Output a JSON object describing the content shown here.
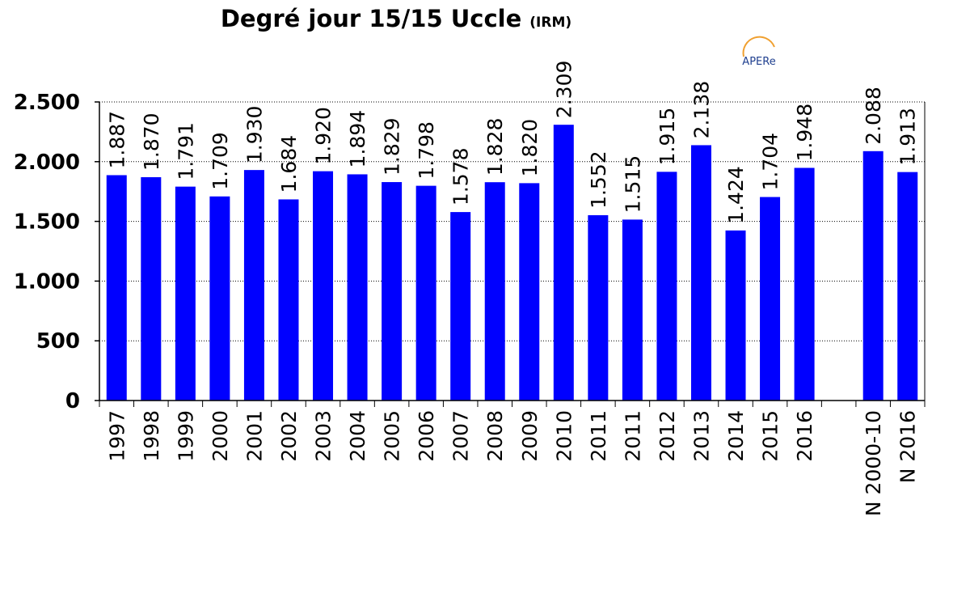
{
  "title": {
    "main": "Degré jour 15/15  Uccle",
    "source": "(IRM)"
  },
  "logo": {
    "text": "APERe"
  },
  "colors": {
    "bar": "#0000ff",
    "grid": "#000000",
    "axis": "#000000",
    "logo_arc": "#f0a030",
    "logo_text": "#1f3f8f"
  },
  "chart_data": {
    "type": "bar",
    "title": "Degré jour 15/15  Uccle (IRM)",
    "xlabel": "",
    "ylabel": "",
    "ylim": [
      0,
      2500
    ],
    "yticks": [
      0,
      500,
      1000,
      1500,
      2000,
      2500
    ],
    "ytick_labels": [
      "0",
      "500",
      "1.000",
      "1.500",
      "2.000",
      "2.500"
    ],
    "grid": "horizontal dotted",
    "legend": "none",
    "categories": [
      "1997",
      "1998",
      "1999",
      "2000",
      "2001",
      "2002",
      "2003",
      "2004",
      "2005",
      "2006",
      "2007",
      "2008",
      "2009",
      "2010",
      "2011",
      "2011",
      "2012",
      "2013",
      "2014",
      "2015",
      "2016",
      "",
      "N 2000-10",
      "N 2016"
    ],
    "values": [
      1887,
      1870,
      1791,
      1709,
      1930,
      1684,
      1920,
      1894,
      1829,
      1798,
      1578,
      1828,
      1820,
      2309,
      1552,
      1515,
      1915,
      2138,
      1424,
      1704,
      1948,
      null,
      2088,
      1913
    ],
    "value_labels": [
      "1.887",
      "1.870",
      "1.791",
      "1.709",
      "1.930",
      "1.684",
      "1.920",
      "1.894",
      "1.829",
      "1.798",
      "1.578",
      "1.828",
      "1.820",
      "2.309",
      "1.552",
      "1.515",
      "1.915",
      "2.138",
      "1.424",
      "1.704",
      "1.948",
      "",
      "2.088",
      "1.913"
    ]
  }
}
